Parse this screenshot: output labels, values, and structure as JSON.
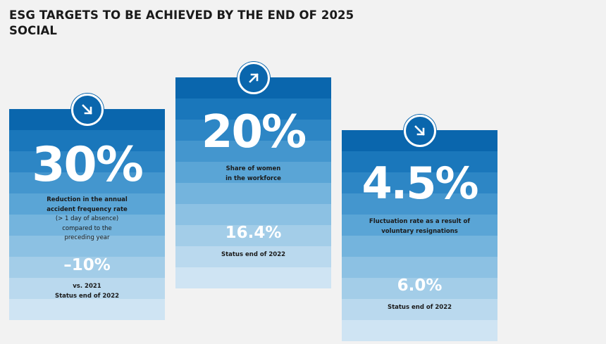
{
  "header": {
    "line1": "ESG TARGETS TO BE ACHIEVED BY THE END OF 2025",
    "line2": "SOCIAL"
  },
  "colors": {
    "stripes": [
      "#0a66ad",
      "#1a77bb",
      "#2d86c5",
      "#4496ce",
      "#5aa5d6",
      "#74b4dd",
      "#8cc1e3",
      "#a3cde8",
      "#bad9ee",
      "#cfe4f3",
      "#e3eef7"
    ]
  },
  "cards": [
    {
      "icon": "arrow-down-right-icon",
      "big": "30%",
      "desc_bold": "Reduction in the annual\naccident frequency rate",
      "desc_light": "(> 1 day of absence)\ncompared to the\npreceding year",
      "status_value": "–10%",
      "status_label": "vs. 2021\nStatus end of 2022"
    },
    {
      "icon": "arrow-up-right-icon",
      "big": "20%",
      "desc_bold": "Share of women\nin the workforce",
      "status_value": "16.4%",
      "status_label": "Status end of 2022"
    },
    {
      "icon": "arrow-down-right-icon",
      "big": "4.5%",
      "desc_bold": "Fluctuation rate as a result of\nvoluntary resignations",
      "status_value": "6.0%",
      "status_label": "Status end of 2022"
    }
  ]
}
